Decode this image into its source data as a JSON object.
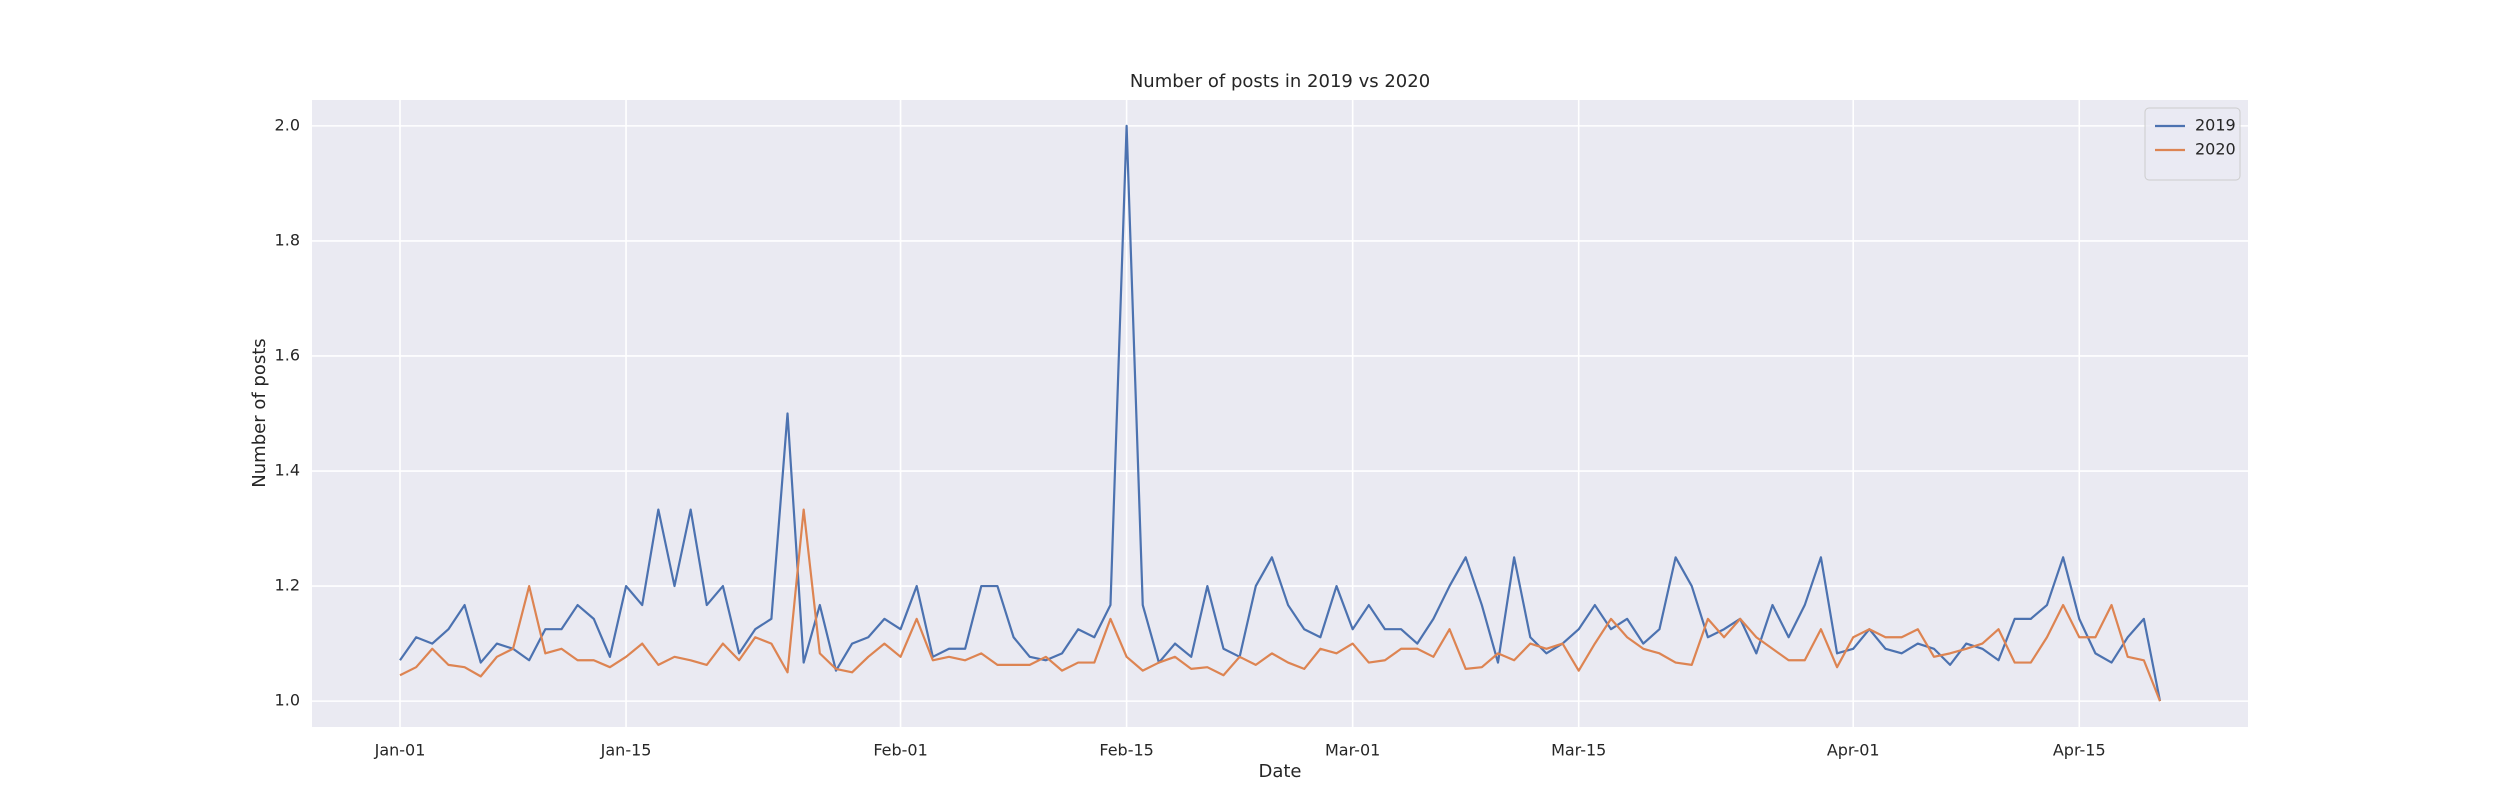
{
  "chart_data": {
    "type": "line",
    "title": "Number of posts in 2019 vs 2020",
    "x_label": "Date",
    "y_label": "Number of posts",
    "categories": [
      "Jan-01",
      "Jan-02",
      "Jan-03",
      "Jan-04",
      "Jan-05",
      "Jan-06",
      "Jan-07",
      "Jan-08",
      "Jan-09",
      "Jan-10",
      "Jan-11",
      "Jan-12",
      "Jan-13",
      "Jan-14",
      "Jan-15",
      "Jan-16",
      "Jan-17",
      "Jan-18",
      "Jan-19",
      "Jan-20",
      "Jan-21",
      "Jan-22",
      "Jan-23",
      "Jan-24",
      "Jan-25",
      "Jan-26",
      "Jan-27",
      "Jan-28",
      "Jan-29",
      "Jan-30",
      "Jan-31",
      "Feb-01",
      "Feb-02",
      "Feb-03",
      "Feb-04",
      "Feb-05",
      "Feb-06",
      "Feb-07",
      "Feb-08",
      "Feb-09",
      "Feb-10",
      "Feb-11",
      "Feb-12",
      "Feb-13",
      "Feb-14",
      "Feb-15",
      "Feb-16",
      "Feb-17",
      "Feb-18",
      "Feb-19",
      "Feb-20",
      "Feb-21",
      "Feb-22",
      "Feb-23",
      "Feb-24",
      "Feb-25",
      "Feb-26",
      "Feb-27",
      "Feb-28",
      "Mar-01",
      "Mar-02",
      "Mar-03",
      "Mar-04",
      "Mar-05",
      "Mar-06",
      "Mar-07",
      "Mar-08",
      "Mar-09",
      "Mar-10",
      "Mar-11",
      "Mar-12",
      "Mar-13",
      "Mar-14",
      "Mar-15",
      "Mar-16",
      "Mar-17",
      "Mar-18",
      "Mar-19",
      "Mar-20",
      "Mar-21",
      "Mar-22",
      "Mar-23",
      "Mar-24",
      "Mar-25",
      "Mar-26",
      "Mar-27",
      "Mar-28",
      "Mar-29",
      "Mar-30",
      "Mar-31",
      "Apr-01",
      "Apr-02",
      "Apr-03",
      "Apr-04",
      "Apr-05",
      "Apr-06",
      "Apr-07",
      "Apr-08",
      "Apr-09",
      "Apr-10",
      "Apr-11",
      "Apr-12",
      "Apr-13",
      "Apr-14",
      "Apr-15",
      "Apr-16",
      "Apr-17",
      "Apr-18",
      "Apr-19",
      "Apr-20"
    ],
    "series": [
      {
        "name": "2019",
        "color": "#4c72b0",
        "values": [
          1.071,
          1.111,
          1.1,
          1.125,
          1.167,
          1.067,
          1.1,
          1.091,
          1.071,
          1.125,
          1.125,
          1.167,
          1.143,
          1.077,
          1.2,
          1.167,
          1.333,
          1.2,
          1.333,
          1.167,
          1.2,
          1.083,
          1.125,
          1.143,
          1.5,
          1.067,
          1.167,
          1.053,
          1.1,
          1.111,
          1.143,
          1.125,
          1.2,
          1.077,
          1.091,
          1.091,
          1.2,
          1.2,
          1.111,
          1.077,
          1.071,
          1.083,
          1.125,
          1.111,
          1.167,
          2.0,
          1.167,
          1.067,
          1.1,
          1.077,
          1.2,
          1.091,
          1.077,
          1.2,
          1.25,
          1.167,
          1.125,
          1.111,
          1.2,
          1.125,
          1.167,
          1.125,
          1.125,
          1.1,
          1.143,
          1.2,
          1.25,
          1.167,
          1.067,
          1.25,
          1.111,
          1.083,
          1.1,
          1.125,
          1.167,
          1.125,
          1.143,
          1.1,
          1.125,
          1.25,
          1.2,
          1.111,
          1.125,
          1.143,
          1.083,
          1.167,
          1.111,
          1.167,
          1.25,
          1.083,
          1.091,
          1.125,
          1.091,
          1.083,
          1.1,
          1.091,
          1.063,
          1.1,
          1.091,
          1.071,
          1.143,
          1.143,
          1.167,
          1.25,
          1.143,
          1.083,
          1.067,
          1.111,
          1.143,
          1.0
        ]
      },
      {
        "name": "2020",
        "color": "#dd8452",
        "values": [
          1.045,
          1.059,
          1.091,
          1.063,
          1.059,
          1.043,
          1.077,
          1.091,
          1.2,
          1.083,
          1.091,
          1.071,
          1.071,
          1.059,
          1.077,
          1.1,
          1.063,
          1.077,
          1.071,
          1.063,
          1.1,
          1.071,
          1.111,
          1.1,
          1.05,
          1.333,
          1.083,
          1.056,
          1.05,
          1.077,
          1.1,
          1.077,
          1.143,
          1.071,
          1.077,
          1.071,
          1.083,
          1.063,
          1.063,
          1.063,
          1.077,
          1.053,
          1.067,
          1.067,
          1.143,
          1.077,
          1.053,
          1.067,
          1.077,
          1.056,
          1.059,
          1.045,
          1.077,
          1.063,
          1.083,
          1.067,
          1.056,
          1.091,
          1.083,
          1.1,
          1.067,
          1.071,
          1.091,
          1.091,
          1.077,
          1.125,
          1.056,
          1.059,
          1.083,
          1.071,
          1.1,
          1.091,
          1.1,
          1.053,
          1.1,
          1.143,
          1.111,
          1.091,
          1.083,
          1.067,
          1.063,
          1.143,
          1.111,
          1.143,
          1.111,
          1.091,
          1.071,
          1.071,
          1.125,
          1.059,
          1.111,
          1.125,
          1.111,
          1.111,
          1.125,
          1.077,
          1.083,
          1.091,
          1.1,
          1.125,
          1.067,
          1.067,
          1.111,
          1.167,
          1.111,
          1.111,
          1.167,
          1.077,
          1.071,
          1.0
        ]
      }
    ],
    "xticks": [
      "Jan-01",
      "Jan-15",
      "Feb-01",
      "Feb-15",
      "Mar-01",
      "Mar-15",
      "Apr-01",
      "Apr-15"
    ],
    "ylim": [
      0.955,
      2.045
    ],
    "yticks": [
      {
        "value": 1,
        "label": "1.0"
      },
      1.2,
      1.4,
      1.6,
      1.8,
      {
        "value": 2,
        "label": "2.0"
      }
    ],
    "grid": true,
    "legend": "upper right"
  }
}
